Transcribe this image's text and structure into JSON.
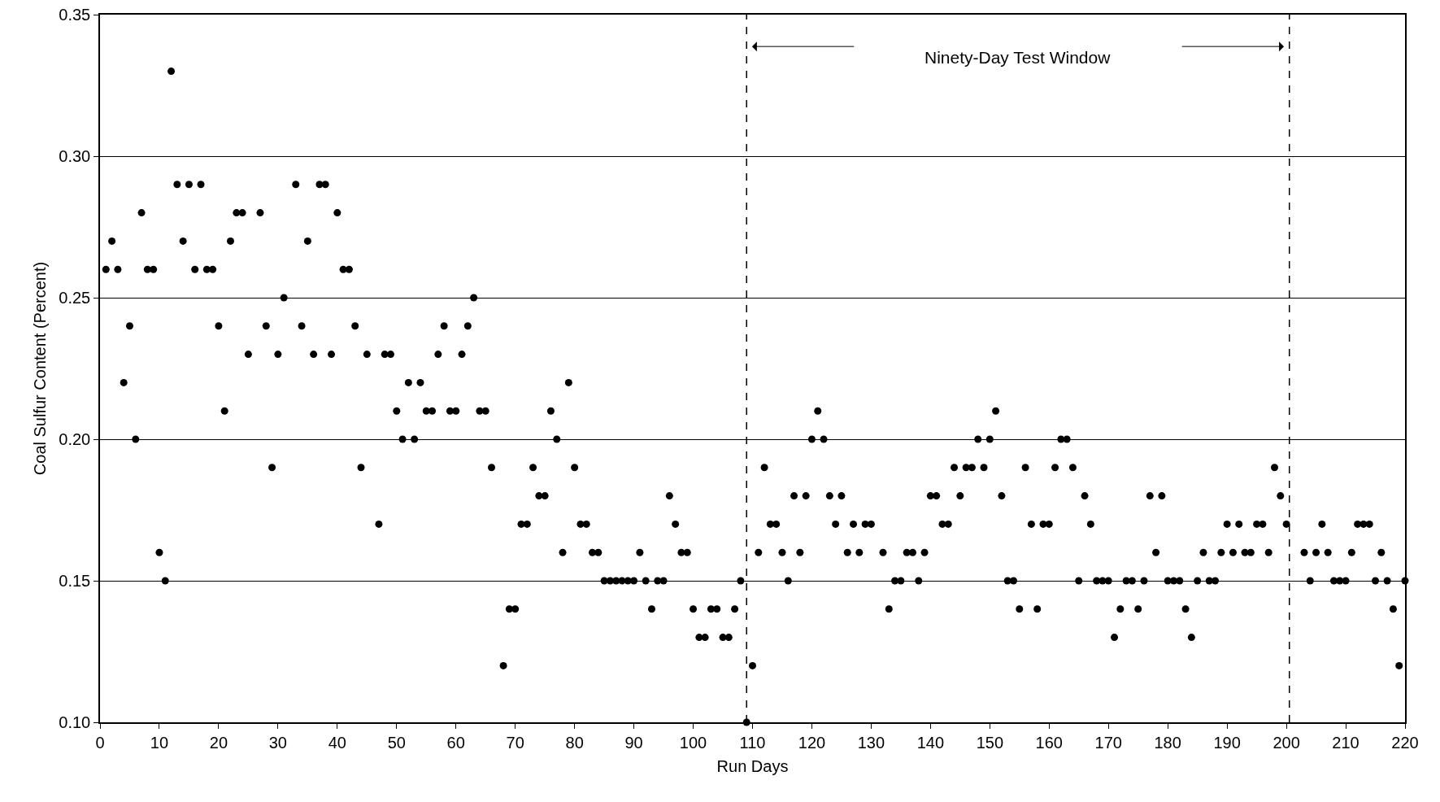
{
  "chart_data": {
    "type": "scatter",
    "xlabel": "Run Days",
    "ylabel": "Coal Sulfur Content (Percent)",
    "x": [
      1,
      2,
      3,
      4,
      5,
      6,
      7,
      8,
      9,
      10,
      11,
      12,
      13,
      14,
      15,
      16,
      17,
      18,
      19,
      20,
      21,
      22,
      23,
      24,
      25,
      27,
      28,
      29,
      30,
      31,
      33,
      34,
      35,
      36,
      37,
      38,
      39,
      40,
      41,
      42,
      43,
      44,
      45,
      47,
      48,
      49,
      50,
      51,
      52,
      53,
      54,
      55,
      56,
      57,
      58,
      59,
      60,
      61,
      62,
      63,
      64,
      65,
      66,
      68,
      69,
      70,
      71,
      72,
      73,
      74,
      75,
      76,
      77,
      78,
      79,
      80,
      81,
      82,
      83,
      84,
      85,
      86,
      87,
      88,
      89,
      90,
      91,
      92,
      93,
      94,
      95,
      96,
      97,
      98,
      99,
      100,
      101,
      102,
      103,
      104,
      105,
      106,
      107,
      108,
      109,
      110,
      111,
      112,
      113,
      114,
      115,
      116,
      117,
      118,
      119,
      120,
      121,
      122,
      123,
      124,
      125,
      126,
      127,
      128,
      129,
      130,
      132,
      133,
      134,
      135,
      136,
      137,
      138,
      139,
      140,
      141,
      142,
      143,
      144,
      145,
      146,
      147,
      148,
      149,
      150,
      151,
      152,
      153,
      154,
      155,
      156,
      157,
      158,
      159,
      160,
      161,
      162,
      163,
      164,
      165,
      166,
      167,
      168,
      169,
      170,
      171,
      172,
      173,
      174,
      175,
      176,
      177,
      178,
      179,
      180,
      181,
      182,
      183,
      184,
      185,
      186,
      187,
      188,
      189,
      190,
      191,
      192,
      193,
      194,
      195,
      196,
      197,
      198,
      199,
      200,
      203,
      204,
      205,
      206,
      207,
      208,
      209,
      210,
      211,
      212,
      213,
      214,
      215,
      216,
      217,
      218,
      219,
      220
    ],
    "values": [
      0.26,
      0.27,
      0.26,
      0.22,
      0.24,
      0.2,
      0.28,
      0.26,
      0.26,
      0.16,
      0.15,
      0.33,
      0.29,
      0.27,
      0.29,
      0.26,
      0.29,
      0.26,
      0.26,
      0.24,
      0.21,
      0.27,
      0.28,
      0.28,
      0.23,
      0.28,
      0.24,
      0.19,
      0.23,
      0.25,
      0.29,
      0.24,
      0.27,
      0.23,
      0.29,
      0.29,
      0.23,
      0.28,
      0.26,
      0.26,
      0.24,
      0.19,
      0.23,
      0.17,
      0.23,
      0.23,
      0.21,
      0.2,
      0.22,
      0.2,
      0.22,
      0.21,
      0.21,
      0.23,
      0.24,
      0.21,
      0.21,
      0.23,
      0.24,
      0.25,
      0.21,
      0.21,
      0.19,
      0.12,
      0.14,
      0.14,
      0.17,
      0.17,
      0.19,
      0.18,
      0.18,
      0.21,
      0.2,
      0.16,
      0.22,
      0.19,
      0.17,
      0.17,
      0.16,
      0.16,
      0.15,
      0.15,
      0.15,
      0.15,
      0.15,
      0.15,
      0.16,
      0.15,
      0.14,
      0.15,
      0.15,
      0.18,
      0.17,
      0.16,
      0.16,
      0.14,
      0.13,
      0.13,
      0.14,
      0.14,
      0.13,
      0.13,
      0.14,
      0.15,
      0.1,
      0.12,
      0.16,
      0.19,
      0.17,
      0.17,
      0.16,
      0.15,
      0.18,
      0.16,
      0.18,
      0.2,
      0.21,
      0.2,
      0.18,
      0.17,
      0.18,
      0.16,
      0.17,
      0.16,
      0.17,
      0.17,
      0.16,
      0.14,
      0.15,
      0.15,
      0.16,
      0.16,
      0.15,
      0.16,
      0.18,
      0.18,
      0.17,
      0.17,
      0.19,
      0.18,
      0.19,
      0.19,
      0.2,
      0.19,
      0.2,
      0.21,
      0.18,
      0.15,
      0.15,
      0.14,
      0.19,
      0.17,
      0.14,
      0.17,
      0.17,
      0.19,
      0.2,
      0.2,
      0.19,
      0.15,
      0.18,
      0.17,
      0.15,
      0.15,
      0.15,
      0.13,
      0.14,
      0.15,
      0.15,
      0.14,
      0.15,
      0.18,
      0.16,
      0.18,
      0.15,
      0.15,
      0.15,
      0.14,
      0.13,
      0.15,
      0.16,
      0.15,
      0.15,
      0.16,
      0.17,
      0.16,
      0.17,
      0.16,
      0.16,
      0.17,
      0.17,
      0.16,
      0.19,
      0.18,
      0.17,
      0.16,
      0.15,
      0.16,
      0.17,
      0.16,
      0.15,
      0.15,
      0.15,
      0.16,
      0.17,
      0.17,
      0.17,
      0.15,
      0.16,
      0.15,
      0.14,
      0.12,
      0.15
    ],
    "color": "#000000",
    "marker": "circle",
    "xlim": [
      0,
      220
    ],
    "xticks": [
      0,
      10,
      20,
      30,
      40,
      50,
      60,
      70,
      80,
      90,
      100,
      110,
      120,
      130,
      140,
      150,
      160,
      170,
      180,
      190,
      200,
      210,
      220
    ],
    "ylim": [
      0.1,
      0.35
    ],
    "yticks": [
      {
        "value": 0.1,
        "label": "0.10"
      },
      {
        "value": 0.15,
        "label": "0.15"
      },
      {
        "value": 0.2,
        "label": "0.20"
      },
      {
        "value": 0.25,
        "label": "0.25"
      },
      {
        "value": 0.3,
        "label": "0.30"
      },
      {
        "value": 0.35,
        "label": "0.35"
      }
    ],
    "grid": "y",
    "ref_lines": [
      {
        "axis": "x",
        "value": 109,
        "line_style": "dashed",
        "color": "#000000"
      },
      {
        "axis": "x",
        "value": 200.5,
        "line_style": "dashed",
        "color": "#000000"
      }
    ],
    "annotations": [
      "Ninety-Day Test Window"
    ]
  }
}
